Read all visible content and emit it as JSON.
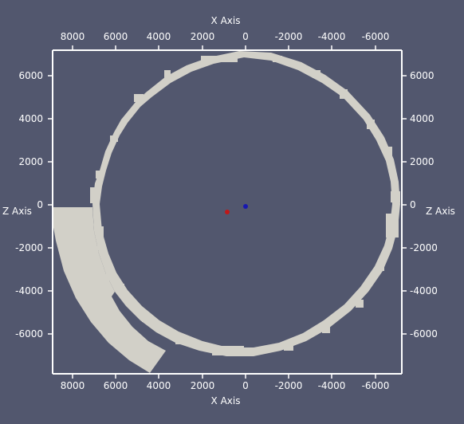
{
  "view": {
    "background": "#52576e",
    "geometry_color": "#d2d0c8",
    "axes_color": "#ffffff",
    "tick_label_color": "#ffffff"
  },
  "axes": {
    "x_title_top": "X Axis",
    "x_title_bottom": "X Axis",
    "z_title_left": "Z Axis",
    "z_title_right": "Z Axis",
    "x_ticks": [
      "8000",
      "6000",
      "4000",
      "2000",
      "0",
      "-2000",
      "-4000",
      "-6000"
    ],
    "z_ticks_left": [
      "6000",
      "4000",
      "2000",
      "0",
      "-2000",
      "-4000",
      "-6000"
    ],
    "z_ticks_right": [
      "6000",
      "4000",
      "2000",
      "0",
      "-2000",
      "-4000",
      "-6000"
    ]
  },
  "markers": [
    {
      "name": "red-marker",
      "color": "#c01818",
      "x": 850,
      "z": -250
    },
    {
      "name": "blue-marker",
      "color": "#1818b0",
      "x": 0,
      "z": 0
    }
  ]
}
